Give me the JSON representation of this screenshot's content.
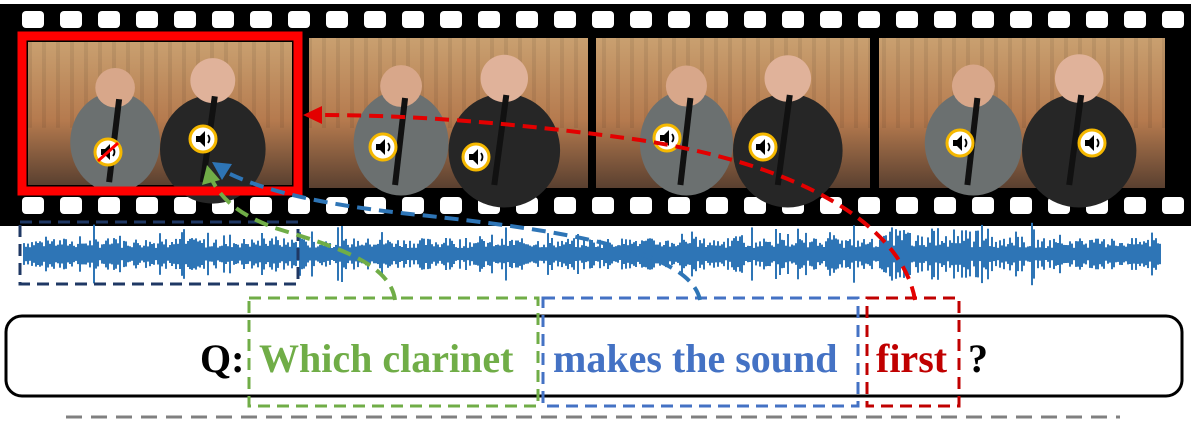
{
  "question": {
    "prefix": "Q:",
    "part_object": "Which clarinet",
    "part_action": "makes the sound",
    "part_temporal": "first",
    "suffix": "?"
  },
  "colors": {
    "object": "#70ad47",
    "action": "#4472c4",
    "temporal": "#c00000",
    "highlight_frame": "#ff0000",
    "waveform": "#2e75b6",
    "audio_segment_box": "#1f3864",
    "separator": "#808080",
    "sound_icon_ring": "#f5b800"
  },
  "frames": [
    {
      "label": "frame-1",
      "highlighted": true,
      "icons": [
        "sound-muted-icon",
        "sound-icon"
      ]
    },
    {
      "label": "frame-2",
      "highlighted": false,
      "icons": [
        "sound-icon",
        "sound-icon"
      ]
    },
    {
      "label": "frame-3",
      "highlighted": false,
      "icons": [
        "sound-icon",
        "sound-icon"
      ]
    },
    {
      "label": "frame-4",
      "highlighted": false,
      "icons": [
        "sound-icon",
        "sound-icon"
      ]
    }
  ]
}
